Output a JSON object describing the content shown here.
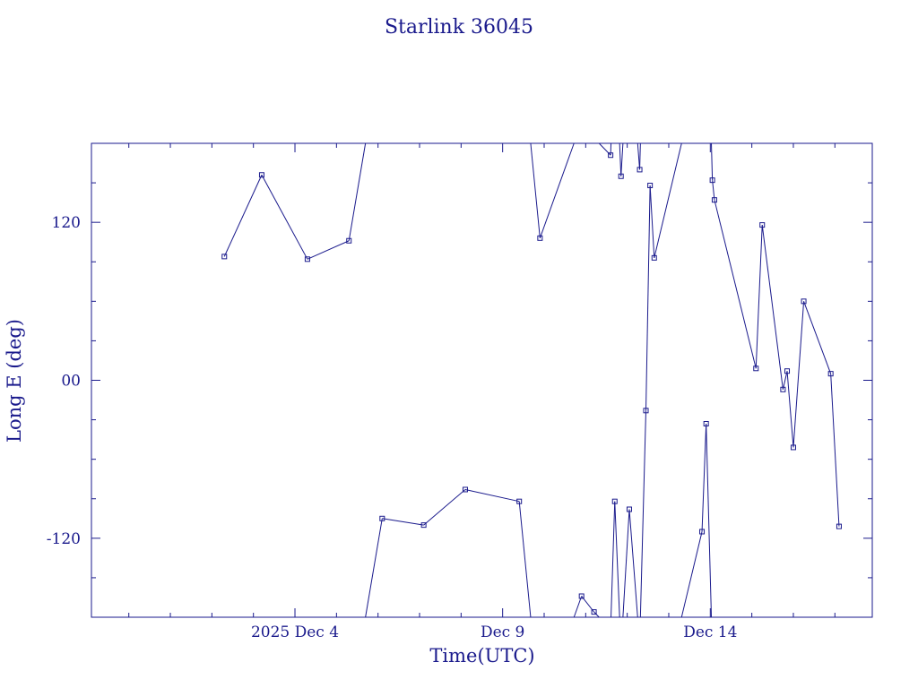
{
  "chart_data": {
    "type": "line",
    "title": "Starlink 36045",
    "xlabel": "Time(UTC)",
    "ylabel": "Long E (deg)",
    "color": "#1a1a8c",
    "x_ticks": [
      {
        "day": 4,
        "label": "2025 Dec  4"
      },
      {
        "day": 9,
        "label": "Dec  9"
      },
      {
        "day": 14,
        "label": "Dec 14"
      }
    ],
    "y_ticks": [
      {
        "value": 120,
        "label": "120"
      },
      {
        "value": 0,
        "label": "00"
      },
      {
        "value": -120,
        "label": "-120"
      }
    ],
    "xlim": [
      -0.9,
      17.9
    ],
    "ylim": [
      -180,
      180
    ],
    "x_unit": "days (Dec 2025)",
    "series": [
      {
        "points": [
          [
            2.3,
            94
          ],
          [
            3.2,
            156
          ],
          [
            4.3,
            92
          ],
          [
            5.3,
            106
          ],
          [
            6.1,
            -105
          ],
          [
            7.1,
            -110
          ],
          [
            8.1,
            -83
          ],
          [
            9.4,
            -92
          ],
          [
            9.9,
            108
          ],
          [
            10.9,
            -164
          ],
          [
            11.2,
            -176
          ],
          [
            11.6,
            171
          ],
          [
            11.7,
            -92
          ],
          [
            11.85,
            155
          ],
          [
            12.05,
            -98
          ],
          [
            12.3,
            160
          ],
          [
            12.45,
            -23
          ],
          [
            12.55,
            148
          ],
          [
            12.65,
            93
          ],
          [
            13.8,
            -115
          ],
          [
            13.9,
            -33
          ],
          [
            14.05,
            152
          ],
          [
            14.1,
            137
          ],
          [
            15.1,
            9
          ],
          [
            15.25,
            118
          ],
          [
            15.75,
            -7
          ],
          [
            15.85,
            7
          ],
          [
            16.0,
            -51
          ],
          [
            16.25,
            60
          ],
          [
            16.9,
            5
          ],
          [
            17.1,
            -111
          ]
        ],
        "wrap_pairs": [
          [
            4.3,
            5.3,
            6.1
          ],
          [
            9.4,
            9.9
          ],
          [
            9.9,
            10.9
          ],
          [
            11.2,
            11.6
          ],
          [
            11.6,
            11.7
          ],
          [
            11.7,
            11.85
          ],
          [
            11.85,
            12.05
          ],
          [
            12.05,
            12.3
          ],
          [
            12.3,
            12.45
          ],
          [
            13.8,
            13.9
          ],
          [
            13.9,
            14.05
          ]
        ]
      }
    ],
    "grid": false
  }
}
